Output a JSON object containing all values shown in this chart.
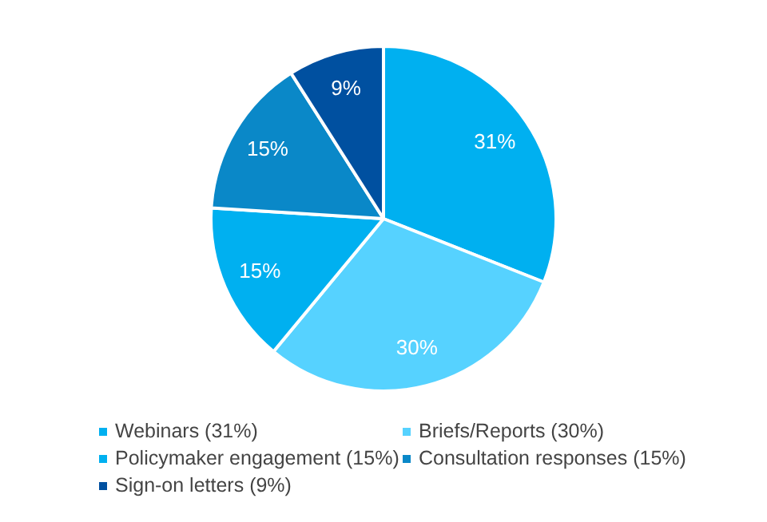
{
  "chart_data": {
    "type": "pie",
    "categories": [
      "Webinars (31%)",
      "Briefs/Reports (30%)",
      "Policymaker engagement (15%)",
      "Consultation responses (15%)",
      "Sign-on letters (9%)"
    ],
    "values": [
      31,
      30,
      15,
      15,
      9
    ],
    "value_labels": [
      "31%",
      "30%",
      "15%",
      "15%",
      "9%"
    ],
    "colors": [
      "#00b0f0",
      "#56d2ff",
      "#00b0f0",
      "#0a88c8",
      "#0050a0"
    ],
    "legend": "bottom"
  }
}
